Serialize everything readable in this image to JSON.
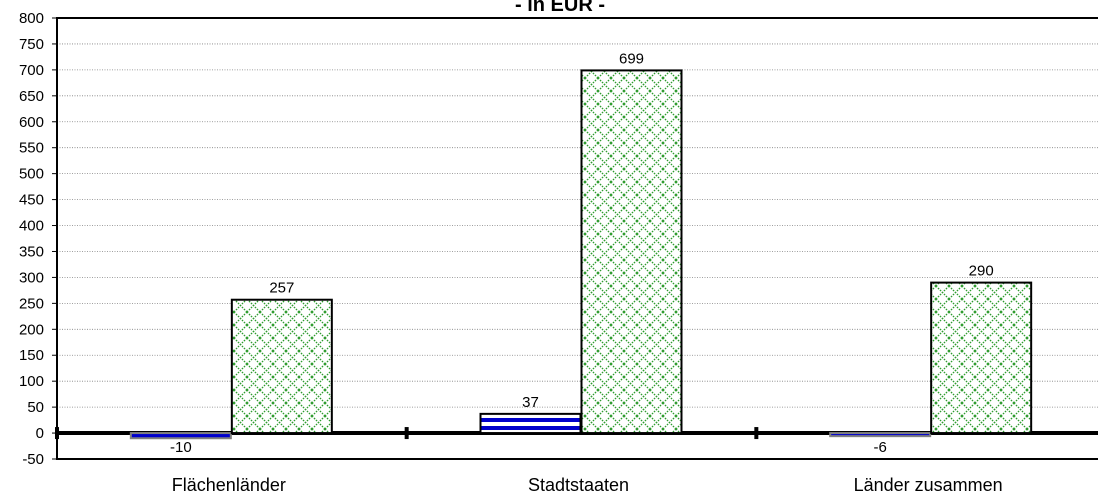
{
  "chart_data": {
    "type": "bar",
    "title": "- in EUR -",
    "categories": [
      "Flächenländer",
      "Stadtstaaten",
      "Länder zusammen"
    ],
    "series": [
      {
        "values": [
          -10,
          37,
          -6
        ],
        "pattern": "horizontal-stripes",
        "color": "#0000cc"
      },
      {
        "values": [
          257,
          699,
          290
        ],
        "pattern": "diagonal-crosshatch",
        "color": "#2e9b2e"
      }
    ],
    "data_labels": [
      [
        "-10",
        "37",
        "-6"
      ],
      [
        "257",
        "699",
        "290"
      ]
    ],
    "ylim": [
      -50,
      800
    ],
    "ytick_step": 50,
    "yticks": [
      "800",
      "750",
      "700",
      "650",
      "600",
      "550",
      "500",
      "450",
      "400",
      "350",
      "300",
      "250",
      "200",
      "150",
      "100",
      "50",
      "0",
      "-50"
    ],
    "grid": true,
    "legend": "none"
  }
}
